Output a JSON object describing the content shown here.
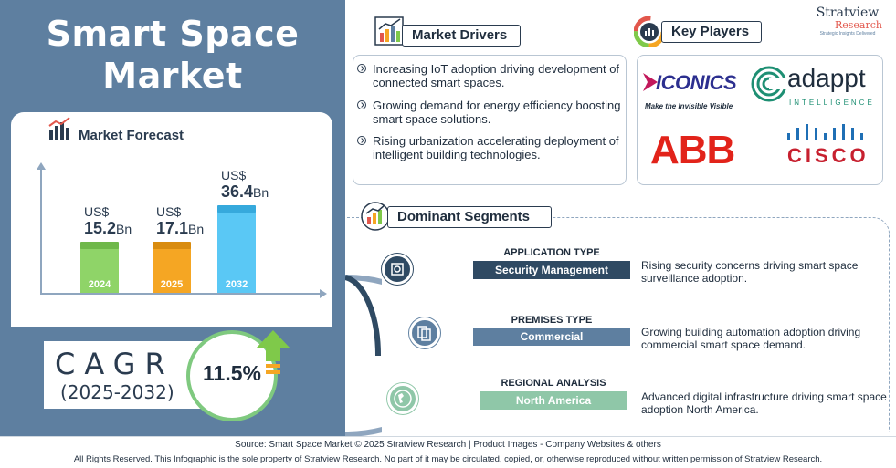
{
  "title_line1": "Smart Space",
  "title_line2": "Market",
  "brand": {
    "name": "Stratview",
    "sub": "Research",
    "tag": "Strategic Insights Delivered"
  },
  "forecast": {
    "title": "Market Forecast",
    "bars": [
      {
        "currency": "US$",
        "value": "15.2",
        "unit": "Bn",
        "year": "2024",
        "color": "#8fd468",
        "top_color": "#6fb84a"
      },
      {
        "currency": "US$",
        "value": "17.1",
        "unit": "Bn",
        "year": "2025",
        "color": "#f5a623",
        "top_color": "#d98c10"
      },
      {
        "currency": "US$",
        "value": "36.4",
        "unit": "Bn",
        "year": "2032",
        "color": "#5ac8f5",
        "top_color": "#36a9dc"
      }
    ]
  },
  "cagr": {
    "label": "CAGR",
    "period": "(2025-2032)",
    "value": "11.5%"
  },
  "drivers": {
    "title": "Market Drivers",
    "items": [
      "Increasing IoT adoption driving development of connected smart spaces.",
      "Growing demand for energy efficiency boosting smart space solutions.",
      "Rising urbanization accelerating deployment of intelligent building technologies."
    ]
  },
  "players": {
    "title": "Key Players",
    "iconics": "ICONICS",
    "iconics_tag": "Make the Invisible Visible",
    "adappt": "adappt",
    "adappt_sub": "INTELLIGENCE",
    "abb": "ABB",
    "cisco": "CISCO"
  },
  "segments": {
    "title": "Dominant Segments",
    "items": [
      {
        "type": "APPLICATION TYPE",
        "value": "Security Management",
        "desc": "Rising security concerns driving smart space surveillance adoption.",
        "color": "#2f4a63"
      },
      {
        "type": "PREMISES TYPE",
        "value": "Commercial",
        "desc": "Growing building automation adoption driving commercial smart space demand.",
        "color": "#5e7fa0"
      },
      {
        "type": "REGIONAL ANALYSIS",
        "value": "North America",
        "desc": "Advanced digital infrastructure driving smart space adoption North America.",
        "color": "#8fc7a8"
      }
    ]
  },
  "footer": {
    "source": "Source:  Smart Space Market © 2025 Stratview Research | Product Images  - Company Websites & others",
    "rights": "All Rights Reserved. This Infographic is the sole property of Stratview Research. No part of it may be circulated, copied, or, otherwise reproduced without written permission of Stratview Research."
  }
}
